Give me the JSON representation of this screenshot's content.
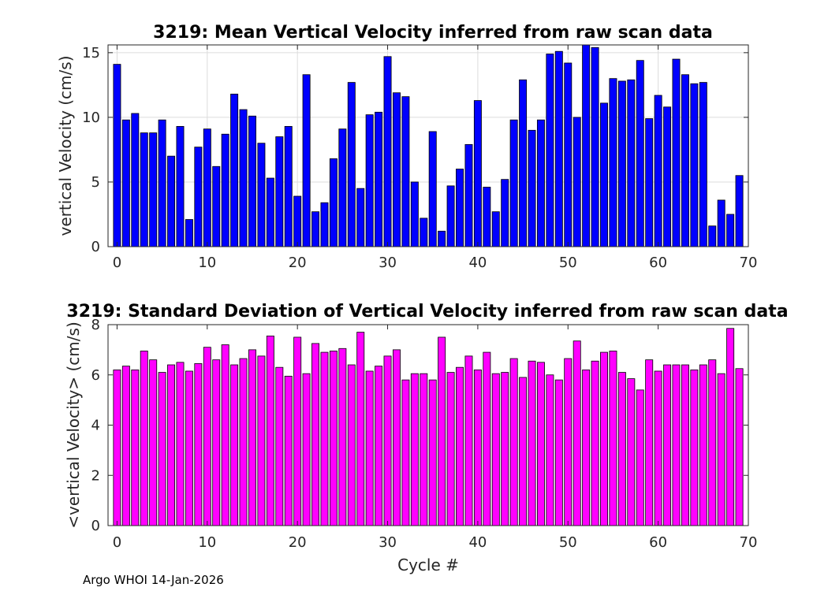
{
  "chart_data": [
    {
      "type": "bar",
      "title": "3219: Mean Vertical Velocity inferred from raw scan data",
      "xlabel": "",
      "ylabel": "vertical Velocity (cm/s)",
      "xlim": [
        -1,
        70
      ],
      "ylim": [
        0,
        15.6
      ],
      "xticks": [
        0,
        10,
        20,
        30,
        40,
        50,
        60,
        70
      ],
      "yticks": [
        0,
        5,
        10,
        15
      ],
      "grid": true,
      "color": "#0000ff",
      "x": [
        0,
        1,
        2,
        3,
        4,
        5,
        6,
        7,
        8,
        9,
        10,
        11,
        12,
        13,
        14,
        15,
        16,
        17,
        18,
        19,
        20,
        21,
        22,
        23,
        24,
        25,
        26,
        27,
        28,
        29,
        30,
        31,
        32,
        33,
        34,
        35,
        36,
        37,
        38,
        39,
        40,
        41,
        42,
        43,
        44,
        45,
        46,
        47,
        48,
        49,
        50,
        51,
        52,
        53,
        54,
        55,
        56,
        57,
        58,
        59,
        60,
        61,
        62,
        63,
        64,
        65,
        66,
        67,
        68,
        69
      ],
      "values": [
        14.1,
        9.8,
        10.3,
        8.8,
        8.8,
        9.8,
        7.0,
        9.3,
        2.1,
        7.7,
        9.1,
        6.2,
        8.7,
        11.8,
        10.6,
        10.1,
        8.0,
        5.3,
        8.5,
        9.3,
        3.9,
        13.3,
        2.7,
        3.4,
        6.8,
        9.1,
        12.7,
        4.5,
        10.2,
        10.4,
        14.7,
        11.9,
        11.6,
        5.0,
        2.2,
        8.9,
        1.2,
        4.7,
        6.0,
        7.9,
        11.3,
        4.6,
        2.7,
        5.2,
        9.8,
        12.9,
        9.0,
        9.8,
        14.9,
        15.1,
        14.2,
        10.0,
        15.6,
        15.4,
        11.1,
        13.0,
        12.8,
        12.9,
        14.4,
        9.9,
        11.7,
        10.8,
        14.5,
        13.3,
        12.6,
        12.7,
        1.6,
        3.6,
        2.5,
        5.5
      ]
    },
    {
      "type": "bar",
      "title": "3219: Standard Deviation of Vertical Velocity inferred from raw scan data",
      "xlabel": "Cycle #",
      "ylabel": "<vertical Velocity> (cm/s)",
      "xlim": [
        -1,
        70
      ],
      "ylim": [
        0,
        8
      ],
      "xticks": [
        0,
        10,
        20,
        30,
        40,
        50,
        60,
        70
      ],
      "yticks": [
        0,
        2,
        4,
        6,
        8
      ],
      "grid": false,
      "color": "#ff00ff",
      "x": [
        0,
        1,
        2,
        3,
        4,
        5,
        6,
        7,
        8,
        9,
        10,
        11,
        12,
        13,
        14,
        15,
        16,
        17,
        18,
        19,
        20,
        21,
        22,
        23,
        24,
        25,
        26,
        27,
        28,
        29,
        30,
        31,
        32,
        33,
        34,
        35,
        36,
        37,
        38,
        39,
        40,
        41,
        42,
        43,
        44,
        45,
        46,
        47,
        48,
        49,
        50,
        51,
        52,
        53,
        54,
        55,
        56,
        57,
        58,
        59,
        60,
        61,
        62,
        63,
        64,
        65,
        66,
        67,
        68,
        69
      ],
      "values": [
        6.2,
        6.35,
        6.2,
        6.95,
        6.6,
        6.1,
        6.4,
        6.5,
        6.15,
        6.45,
        7.1,
        6.6,
        7.2,
        6.4,
        6.65,
        7.0,
        6.75,
        7.55,
        6.3,
        5.95,
        7.5,
        6.05,
        7.25,
        6.9,
        6.95,
        7.05,
        6.4,
        7.7,
        6.15,
        6.35,
        6.75,
        7.0,
        5.8,
        6.05,
        6.05,
        5.8,
        7.5,
        6.1,
        6.3,
        6.75,
        6.2,
        6.9,
        6.05,
        6.1,
        6.65,
        5.9,
        6.55,
        6.5,
        6.0,
        5.8,
        6.65,
        7.35,
        6.2,
        6.55,
        6.9,
        6.95,
        6.1,
        5.85,
        5.4,
        6.6,
        6.15,
        6.4,
        6.4,
        6.4,
        6.2,
        6.4,
        6.6,
        6.05,
        7.85,
        6.25
      ]
    }
  ],
  "footer": "Argo WHOI 14-Jan-2026"
}
